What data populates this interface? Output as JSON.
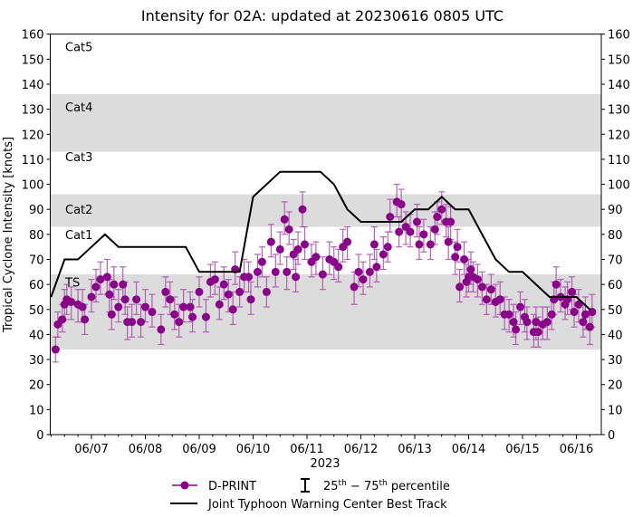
{
  "chart_data": {
    "type": "scatter",
    "title": "Intensity for 02A: updated at 20230616 0805 UTC",
    "xlabel": "2023",
    "ylabel": "Tropical Cyclone Intensity [knots]",
    "ylim": [
      0,
      160
    ],
    "xlim": [
      "2023-06-06T05:45Z",
      "2023-06-16T11:00Z"
    ],
    "yticks": [
      0,
      10,
      20,
      30,
      40,
      50,
      60,
      70,
      80,
      90,
      100,
      110,
      120,
      130,
      140,
      150,
      160
    ],
    "xticks": [
      {
        "date": "2023-06-07T00:00Z",
        "label": "06/07"
      },
      {
        "date": "2023-06-08T00:00Z",
        "label": "06/08"
      },
      {
        "date": "2023-06-09T00:00Z",
        "label": "06/09"
      },
      {
        "date": "2023-06-10T00:00Z",
        "label": "06/10"
      },
      {
        "date": "2023-06-11T00:00Z",
        "label": "06/11"
      },
      {
        "date": "2023-06-12T00:00Z",
        "label": "06/12"
      },
      {
        "date": "2023-06-13T00:00Z",
        "label": "06/13"
      },
      {
        "date": "2023-06-14T00:00Z",
        "label": "06/14"
      },
      {
        "date": "2023-06-15T00:00Z",
        "label": "06/15"
      },
      {
        "date": "2023-06-16T00:00Z",
        "label": "06/16"
      }
    ],
    "grid": false,
    "legend_position": "bottom",
    "category_bands": [
      {
        "label": "TS",
        "low": 34,
        "high": 64,
        "shaded": true
      },
      {
        "label": "Cat1",
        "low": 64,
        "high": 83,
        "shaded": false
      },
      {
        "label": "Cat2",
        "low": 83,
        "high": 96,
        "shaded": true
      },
      {
        "label": "Cat3",
        "low": 96,
        "high": 113,
        "shaded": false
      },
      {
        "label": "Cat4",
        "low": 113,
        "high": 136,
        "shaded": true
      },
      {
        "label": "Cat5",
        "low": 136,
        "high": 160,
        "shaded": false
      }
    ],
    "colors": {
      "dprint": "#8b008b",
      "errorbar": "#a64ca6",
      "best_track": "#000000",
      "band": "#dcdcdc"
    },
    "legend": {
      "dprint": "D-PRINT",
      "percentile_prefix": "25",
      "percentile_sup1": "th",
      "percentile_mid": " − 75",
      "percentile_sup2": "th",
      "percentile_suffix": " percentile",
      "best_track": "Joint Typhoon Warning Center Best Track"
    },
    "best_track": [
      [
        "2023-06-06T06:00Z",
        55
      ],
      [
        "2023-06-06T12:00Z",
        70
      ],
      [
        "2023-06-06T18:00Z",
        70
      ],
      [
        "2023-06-07T00:00Z",
        75
      ],
      [
        "2023-06-07T06:00Z",
        80
      ],
      [
        "2023-06-07T12:00Z",
        75
      ],
      [
        "2023-06-07T18:00Z",
        75
      ],
      [
        "2023-06-08T00:00Z",
        75
      ],
      [
        "2023-06-08T06:00Z",
        75
      ],
      [
        "2023-06-08T12:00Z",
        75
      ],
      [
        "2023-06-08T18:00Z",
        75
      ],
      [
        "2023-06-09T00:00Z",
        65
      ],
      [
        "2023-06-09T06:00Z",
        65
      ],
      [
        "2023-06-09T12:00Z",
        65
      ],
      [
        "2023-06-09T18:00Z",
        65
      ],
      [
        "2023-06-10T00:00Z",
        95
      ],
      [
        "2023-06-10T06:00Z",
        100
      ],
      [
        "2023-06-10T12:00Z",
        105
      ],
      [
        "2023-06-10T18:00Z",
        105
      ],
      [
        "2023-06-11T00:00Z",
        105
      ],
      [
        "2023-06-11T06:00Z",
        105
      ],
      [
        "2023-06-11T12:00Z",
        100
      ],
      [
        "2023-06-11T18:00Z",
        90
      ],
      [
        "2023-06-12T00:00Z",
        85
      ],
      [
        "2023-06-12T06:00Z",
        85
      ],
      [
        "2023-06-12T12:00Z",
        85
      ],
      [
        "2023-06-12T18:00Z",
        85
      ],
      [
        "2023-06-13T00:00Z",
        90
      ],
      [
        "2023-06-13T06:00Z",
        90
      ],
      [
        "2023-06-13T12:00Z",
        95
      ],
      [
        "2023-06-13T18:00Z",
        90
      ],
      [
        "2023-06-14T00:00Z",
        90
      ],
      [
        "2023-06-14T06:00Z",
        80
      ],
      [
        "2023-06-14T12:00Z",
        70
      ],
      [
        "2023-06-14T18:00Z",
        65
      ],
      [
        "2023-06-15T00:00Z",
        65
      ],
      [
        "2023-06-15T06:00Z",
        60
      ],
      [
        "2023-06-15T12:00Z",
        55
      ],
      [
        "2023-06-15T18:00Z",
        55
      ],
      [
        "2023-06-16T00:00Z",
        55
      ],
      [
        "2023-06-16T06:00Z",
        50
      ]
    ],
    "dprint_fields": [
      "time",
      "intensity",
      "p25",
      "p75"
    ],
    "dprint": [
      [
        "2023-06-06T08:00Z",
        34,
        29,
        39
      ],
      [
        "2023-06-06T09:00Z",
        44,
        39,
        49
      ],
      [
        "2023-06-06T11:00Z",
        46,
        41,
        52
      ],
      [
        "2023-06-06T12:00Z",
        52,
        46,
        58
      ],
      [
        "2023-06-06T13:00Z",
        54,
        48,
        60
      ],
      [
        "2023-06-06T15:00Z",
        53,
        46,
        59
      ],
      [
        "2023-06-06T18:00Z",
        52,
        45,
        58
      ],
      [
        "2023-06-06T20:00Z",
        51,
        45,
        58
      ],
      [
        "2023-06-06T21:00Z",
        46,
        40,
        52
      ],
      [
        "2023-06-07T00:00Z",
        55,
        49,
        62
      ],
      [
        "2023-06-07T02:00Z",
        59,
        53,
        66
      ],
      [
        "2023-06-07T04:00Z",
        62,
        56,
        69
      ],
      [
        "2023-06-07T07:00Z",
        63,
        56,
        70
      ],
      [
        "2023-06-07T08:00Z",
        56,
        49,
        62
      ],
      [
        "2023-06-07T09:00Z",
        48,
        42,
        55
      ],
      [
        "2023-06-07T10:00Z",
        60,
        54,
        67
      ],
      [
        "2023-06-07T12:00Z",
        51,
        45,
        58
      ],
      [
        "2023-06-07T14:00Z",
        60,
        54,
        67
      ],
      [
        "2023-06-07T15:00Z",
        54,
        48,
        61
      ],
      [
        "2023-06-07T16:00Z",
        45,
        38,
        51
      ],
      [
        "2023-06-07T18:00Z",
        45,
        39,
        52
      ],
      [
        "2023-06-07T20:00Z",
        54,
        48,
        61
      ],
      [
        "2023-06-07T22:00Z",
        45,
        39,
        52
      ],
      [
        "2023-06-08T00:00Z",
        51,
        45,
        58
      ],
      [
        "2023-06-08T03:00Z",
        49,
        43,
        56
      ],
      [
        "2023-06-08T07:00Z",
        42,
        36,
        48
      ],
      [
        "2023-06-08T09:00Z",
        57,
        51,
        63
      ],
      [
        "2023-06-08T11:00Z",
        54,
        48,
        61
      ],
      [
        "2023-06-08T13:00Z",
        48,
        42,
        55
      ],
      [
        "2023-06-08T15:00Z",
        45,
        39,
        52
      ],
      [
        "2023-06-08T17:00Z",
        51,
        45,
        58
      ],
      [
        "2023-06-08T20:00Z",
        51,
        45,
        57
      ],
      [
        "2023-06-08T21:00Z",
        47,
        41,
        54
      ],
      [
        "2023-06-09T00:00Z",
        57,
        51,
        63
      ],
      [
        "2023-06-09T03:00Z",
        47,
        41,
        54
      ],
      [
        "2023-06-09T05:00Z",
        61,
        55,
        68
      ],
      [
        "2023-06-09T07:00Z",
        62,
        56,
        69
      ],
      [
        "2023-06-09T09:00Z",
        52,
        46,
        59
      ],
      [
        "2023-06-09T11:00Z",
        60,
        54,
        67
      ],
      [
        "2023-06-09T13:00Z",
        56,
        49,
        62
      ],
      [
        "2023-06-09T15:00Z",
        50,
        44,
        57
      ],
      [
        "2023-06-09T16:00Z",
        66,
        60,
        73
      ],
      [
        "2023-06-09T18:00Z",
        57,
        51,
        63
      ],
      [
        "2023-06-09T20:00Z",
        63,
        57,
        70
      ],
      [
        "2023-06-09T22:00Z",
        63,
        57,
        69
      ],
      [
        "2023-06-09T23:00Z",
        54,
        48,
        61
      ],
      [
        "2023-06-10T02:00Z",
        65,
        59,
        72
      ],
      [
        "2023-06-10T04:00Z",
        69,
        63,
        75
      ],
      [
        "2023-06-10T06:00Z",
        57,
        51,
        63
      ],
      [
        "2023-06-10T08:00Z",
        77,
        71,
        84
      ],
      [
        "2023-06-10T10:00Z",
        65,
        59,
        72
      ],
      [
        "2023-06-10T12:00Z",
        74,
        68,
        81
      ],
      [
        "2023-06-10T14:00Z",
        86,
        80,
        93
      ],
      [
        "2023-06-10T15:00Z",
        65,
        58,
        71
      ],
      [
        "2023-06-10T16:00Z",
        82,
        76,
        89
      ],
      [
        "2023-06-10T18:00Z",
        72,
        66,
        78
      ],
      [
        "2023-06-10T19:00Z",
        63,
        57,
        70
      ],
      [
        "2023-06-10T20:00Z",
        74,
        68,
        81
      ],
      [
        "2023-06-10T22:00Z",
        90,
        83,
        97
      ],
      [
        "2023-06-10T23:00Z",
        76,
        70,
        83
      ],
      [
        "2023-06-11T02:00Z",
        69,
        63,
        76
      ],
      [
        "2023-06-11T04:00Z",
        71,
        64,
        77
      ],
      [
        "2023-06-11T07:00Z",
        64,
        58,
        71
      ],
      [
        "2023-06-11T10:00Z",
        70,
        64,
        77
      ],
      [
        "2023-06-11T12:00Z",
        69,
        62,
        75
      ],
      [
        "2023-06-11T14:00Z",
        67,
        61,
        74
      ],
      [
        "2023-06-11T16:00Z",
        75,
        69,
        82
      ],
      [
        "2023-06-11T18:00Z",
        77,
        70,
        83
      ],
      [
        "2023-06-11T21:00Z",
        59,
        52,
        65
      ],
      [
        "2023-06-11T23:00Z",
        65,
        59,
        72
      ],
      [
        "2023-06-12T01:00Z",
        62,
        56,
        69
      ],
      [
        "2023-06-12T04:00Z",
        65,
        59,
        72
      ],
      [
        "2023-06-12T06:00Z",
        76,
        70,
        83
      ],
      [
        "2023-06-12T07:00Z",
        67,
        61,
        74
      ],
      [
        "2023-06-12T10:00Z",
        72,
        66,
        79
      ],
      [
        "2023-06-12T12:00Z",
        75,
        69,
        81
      ],
      [
        "2023-06-12T13:00Z",
        87,
        81,
        94
      ],
      [
        "2023-06-12T16:00Z",
        93,
        87,
        100
      ],
      [
        "2023-06-12T17:00Z",
        81,
        75,
        87
      ],
      [
        "2023-06-12T18:00Z",
        92,
        85,
        98
      ],
      [
        "2023-06-12T20:00Z",
        83,
        76,
        89
      ],
      [
        "2023-06-12T22:00Z",
        81,
        75,
        88
      ],
      [
        "2023-06-13T01:00Z",
        85,
        79,
        92
      ],
      [
        "2023-06-13T02:00Z",
        76,
        70,
        83
      ],
      [
        "2023-06-13T04:00Z",
        80,
        73,
        86
      ],
      [
        "2023-06-13T07:00Z",
        76,
        70,
        83
      ],
      [
        "2023-06-13T09:00Z",
        82,
        76,
        89
      ],
      [
        "2023-06-13T10:00Z",
        87,
        80,
        93
      ],
      [
        "2023-06-13T12:00Z",
        90,
        84,
        97
      ],
      [
        "2023-06-13T14:00Z",
        85,
        79,
        92
      ],
      [
        "2023-06-13T15:00Z",
        77,
        70,
        83
      ],
      [
        "2023-06-13T16:00Z",
        85,
        78,
        91
      ],
      [
        "2023-06-13T18:00Z",
        71,
        64,
        77
      ],
      [
        "2023-06-13T19:00Z",
        75,
        69,
        82
      ],
      [
        "2023-06-13T20:00Z",
        59,
        53,
        66
      ],
      [
        "2023-06-13T22:00Z",
        70,
        64,
        77
      ],
      [
        "2023-06-13T23:00Z",
        61,
        55,
        68
      ],
      [
        "2023-06-14T00:00Z",
        63,
        57,
        70
      ],
      [
        "2023-06-14T01:00Z",
        66,
        60,
        73
      ],
      [
        "2023-06-14T02:00Z",
        63,
        57,
        69
      ],
      [
        "2023-06-14T04:00Z",
        62,
        55,
        68
      ],
      [
        "2023-06-14T06:00Z",
        59,
        52,
        65
      ],
      [
        "2023-06-14T08:00Z",
        54,
        48,
        60
      ],
      [
        "2023-06-14T10:00Z",
        58,
        52,
        64
      ],
      [
        "2023-06-14T12:00Z",
        53,
        47,
        60
      ],
      [
        "2023-06-14T14:00Z",
        54,
        48,
        61
      ],
      [
        "2023-06-14T16:00Z",
        48,
        42,
        55
      ],
      [
        "2023-06-14T18:00Z",
        48,
        41,
        54
      ],
      [
        "2023-06-14T20:00Z",
        45,
        39,
        52
      ],
      [
        "2023-06-14T21:00Z",
        42,
        36,
        49
      ],
      [
        "2023-06-14T23:00Z",
        51,
        44,
        57
      ],
      [
        "2023-06-15T01:00Z",
        47,
        41,
        54
      ],
      [
        "2023-06-15T02:00Z",
        45,
        38,
        51
      ],
      [
        "2023-06-15T05:00Z",
        41,
        35,
        48
      ],
      [
        "2023-06-15T06:00Z",
        45,
        38,
        51
      ],
      [
        "2023-06-15T07:00Z",
        41,
        35,
        47
      ],
      [
        "2023-06-15T09:00Z",
        44,
        38,
        51
      ],
      [
        "2023-06-15T11:00Z",
        45,
        38,
        51
      ],
      [
        "2023-06-15T13:00Z",
        48,
        42,
        55
      ],
      [
        "2023-06-15T14:00Z",
        54,
        48,
        61
      ],
      [
        "2023-06-15T15:00Z",
        60,
        54,
        67
      ],
      [
        "2023-06-15T17:00Z",
        55,
        49,
        62
      ],
      [
        "2023-06-15T19:00Z",
        52,
        46,
        59
      ],
      [
        "2023-06-15T20:00Z",
        54,
        48,
        61
      ],
      [
        "2023-06-15T22:00Z",
        57,
        50,
        63
      ],
      [
        "2023-06-15T23:00Z",
        49,
        43,
        56
      ],
      [
        "2023-06-16T01:00Z",
        52,
        45,
        58
      ],
      [
        "2023-06-16T03:00Z",
        45,
        39,
        52
      ],
      [
        "2023-06-16T04:00Z",
        48,
        42,
        55
      ],
      [
        "2023-06-16T06:00Z",
        43,
        36,
        49
      ],
      [
        "2023-06-16T07:00Z",
        49,
        43,
        56
      ]
    ]
  }
}
